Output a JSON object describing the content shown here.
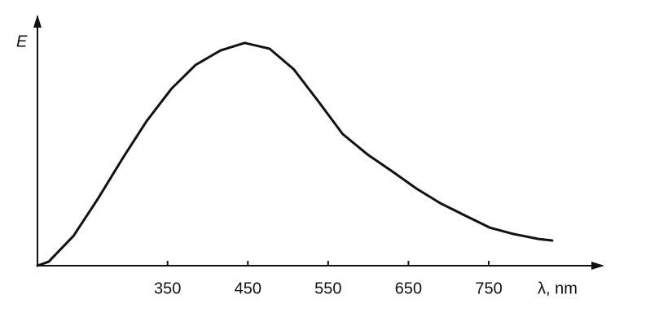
{
  "chart_data": {
    "type": "line",
    "y_label": "E",
    "x_label": "λ, nm",
    "x": [
      188,
      202,
      233,
      263,
      294,
      324,
      355,
      385,
      416,
      446,
      477,
      507,
      538,
      568,
      599,
      629,
      660,
      690,
      720,
      751,
      781,
      812,
      829
    ],
    "series": [
      {
        "color": "#111111",
        "values": [
          0,
          1.6,
          12,
          26.7,
          43,
          58,
          71,
          80.5,
          86.3,
          89.3,
          87,
          78.8,
          65.8,
          52.8,
          44.6,
          38,
          30.9,
          25,
          20.2,
          15.3,
          12.7,
          10.7,
          10.1
        ]
      }
    ],
    "xlim": [
      188,
      892
    ],
    "ylim": [
      0,
      100
    ],
    "xticks": [
      350,
      450,
      550,
      650,
      750
    ]
  }
}
